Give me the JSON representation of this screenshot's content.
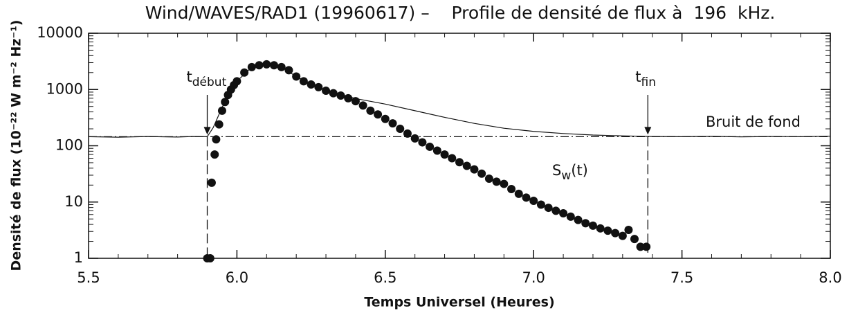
{
  "chart_data": {
    "type": "scatter",
    "title": "Wind/WAVES/RAD1 (19960617) –    Profile de densité de flux à  196  kHz.",
    "xlabel": "Temps Universel (Heures)",
    "ylabel": "Densité de flux (10⁻²² W m⁻² Hz⁻¹)",
    "xlim": [
      5.5,
      8.0
    ],
    "ylim": [
      1,
      10000
    ],
    "yscale": "log",
    "xticks": [
      5.5,
      {
        "value": 6,
        "label": "6.0"
      },
      6.5,
      {
        "value": 7,
        "label": "7.0"
      },
      7.5,
      {
        "value": 8,
        "label": "8.0"
      }
    ],
    "yticks": [
      1,
      10,
      100,
      1000,
      10000
    ],
    "color": "#111111",
    "points": {
      "x": [
        5.9,
        5.91,
        5.915,
        5.925,
        5.93,
        5.94,
        5.95,
        5.96,
        5.97,
        5.98,
        5.99,
        6.0,
        6.025,
        6.05,
        6.075,
        6.1,
        6.125,
        6.15,
        6.175,
        6.2,
        6.225,
        6.25,
        6.275,
        6.3,
        6.325,
        6.35,
        6.375,
        6.4,
        6.425,
        6.45,
        6.475,
        6.5,
        6.525,
        6.55,
        6.575,
        6.6,
        6.625,
        6.65,
        6.675,
        6.7,
        6.725,
        6.75,
        6.775,
        6.8,
        6.825,
        6.85,
        6.875,
        6.9,
        6.925,
        6.95,
        6.975,
        7.0,
        7.025,
        7.05,
        7.075,
        7.1,
        7.125,
        7.15,
        7.175,
        7.2,
        7.225,
        7.25,
        7.275,
        7.3,
        7.32,
        7.34,
        7.36,
        7.38
      ],
      "y": [
        1,
        1,
        22,
        70,
        130,
        240,
        420,
        600,
        800,
        1000,
        1200,
        1400,
        2000,
        2500,
        2700,
        2800,
        2700,
        2500,
        2200,
        1700,
        1400,
        1230,
        1100,
        950,
        860,
        780,
        700,
        620,
        520,
        420,
        360,
        300,
        250,
        200,
        165,
        135,
        115,
        96,
        82,
        70,
        60,
        51,
        44,
        38,
        32,
        26,
        23,
        21,
        17,
        14,
        12,
        10.5,
        9,
        7.9,
        7,
        6.3,
        5.5,
        4.8,
        4.2,
        3.8,
        3.4,
        3.1,
        2.8,
        2.5,
        3.2,
        2.2,
        1.6,
        1.6
      ]
    },
    "curve": {
      "x": [
        5.5,
        5.6,
        5.7,
        5.8,
        5.85,
        5.9,
        5.92,
        5.95,
        5.98,
        6.0,
        6.05,
        6.1,
        6.15,
        6.2,
        6.25,
        6.3,
        6.35,
        6.4,
        6.5,
        6.6,
        6.7,
        6.8,
        6.9,
        7.0,
        7.1,
        7.2,
        7.3,
        7.4,
        7.5,
        7.6,
        7.7,
        7.8,
        7.9,
        8.0
      ],
      "y": [
        145,
        142,
        146,
        143,
        146,
        145,
        210,
        480,
        1000,
        1400,
        2500,
        2800,
        2500,
        1700,
        1250,
        980,
        820,
        690,
        550,
        420,
        320,
        250,
        205,
        180,
        165,
        155,
        150,
        146,
        145,
        147,
        144,
        146,
        145,
        148
      ]
    },
    "background": 145,
    "annotations": [
      {
        "base": "t",
        "sub": "début",
        "x": 5.9
      },
      {
        "base": "t",
        "sub": "fin",
        "x": 7.385
      },
      {
        "text": "Bruit de fond"
      },
      {
        "base": "S",
        "sub": "w",
        "after": "(t)"
      }
    ]
  }
}
